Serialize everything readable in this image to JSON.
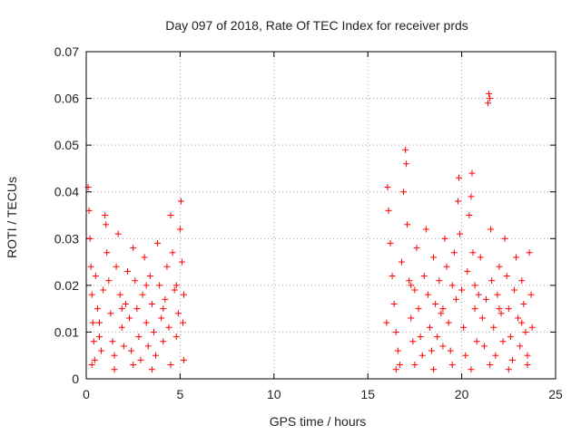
{
  "chart_data": {
    "type": "scatter",
    "title": "Day 097 of 2018, Rate Of TEC Index for receiver prds",
    "xlabel": "GPS time / hours",
    "ylabel": "ROTI / TECUs",
    "xlim": [
      0,
      25
    ],
    "ylim": [
      0,
      0.07
    ],
    "x_ticks": [
      "0",
      "5",
      "10",
      "15",
      "20",
      "25"
    ],
    "y_ticks": [
      "0",
      "0.01",
      "0.02",
      "0.03",
      "0.04",
      "0.05",
      "0.06",
      "0.07"
    ],
    "grid": true,
    "marker": "+",
    "color": "#ff0000",
    "series": [
      {
        "points": [
          [
            0.1,
            0.041
          ],
          [
            0.15,
            0.036
          ],
          [
            0.2,
            0.03
          ],
          [
            0.25,
            0.024
          ],
          [
            0.3,
            0.018
          ],
          [
            0.35,
            0.012
          ],
          [
            0.4,
            0.008
          ],
          [
            0.45,
            0.004
          ],
          [
            0.5,
            0.022
          ],
          [
            0.6,
            0.015
          ],
          [
            0.7,
            0.009
          ],
          [
            0.8,
            0.006
          ],
          [
            0.9,
            0.019
          ],
          [
            1.0,
            0.035
          ],
          [
            1.05,
            0.033
          ],
          [
            1.1,
            0.027
          ],
          [
            1.2,
            0.021
          ],
          [
            1.3,
            0.014
          ],
          [
            1.4,
            0.008
          ],
          [
            1.5,
            0.005
          ],
          [
            1.6,
            0.024
          ],
          [
            1.7,
            0.031
          ],
          [
            1.8,
            0.018
          ],
          [
            1.9,
            0.011
          ],
          [
            2.0,
            0.007
          ],
          [
            2.1,
            0.016
          ],
          [
            2.2,
            0.023
          ],
          [
            2.3,
            0.013
          ],
          [
            2.4,
            0.006
          ],
          [
            2.5,
            0.028
          ],
          [
            2.6,
            0.021
          ],
          [
            2.7,
            0.015
          ],
          [
            2.8,
            0.009
          ],
          [
            2.9,
            0.004
          ],
          [
            3.0,
            0.018
          ],
          [
            3.1,
            0.026
          ],
          [
            3.2,
            0.012
          ],
          [
            3.3,
            0.007
          ],
          [
            3.4,
            0.022
          ],
          [
            3.5,
            0.016
          ],
          [
            3.6,
            0.01
          ],
          [
            3.7,
            0.005
          ],
          [
            3.8,
            0.029
          ],
          [
            3.9,
            0.02
          ],
          [
            4.0,
            0.013
          ],
          [
            4.1,
            0.008
          ],
          [
            4.2,
            0.017
          ],
          [
            4.3,
            0.024
          ],
          [
            4.4,
            0.011
          ],
          [
            4.5,
            0.035
          ],
          [
            4.6,
            0.027
          ],
          [
            4.7,
            0.019
          ],
          [
            4.8,
            0.009
          ],
          [
            4.9,
            0.014
          ],
          [
            5.0,
            0.032
          ],
          [
            5.05,
            0.038
          ],
          [
            5.1,
            0.025
          ],
          [
            5.15,
            0.012
          ],
          [
            5.2,
            0.004
          ],
          [
            5.2,
            0.018
          ],
          [
            0.3,
            0.003
          ],
          [
            1.5,
            0.002
          ],
          [
            2.5,
            0.003
          ],
          [
            3.5,
            0.002
          ],
          [
            4.5,
            0.003
          ],
          [
            0.7,
            0.012
          ],
          [
            1.9,
            0.015
          ],
          [
            3.2,
            0.02
          ],
          [
            4.1,
            0.015
          ],
          [
            4.8,
            0.02
          ],
          [
            16.0,
            0.012
          ],
          [
            16.05,
            0.041
          ],
          [
            16.1,
            0.036
          ],
          [
            16.2,
            0.029
          ],
          [
            16.3,
            0.022
          ],
          [
            16.4,
            0.016
          ],
          [
            16.5,
            0.01
          ],
          [
            16.6,
            0.006
          ],
          [
            16.7,
            0.003
          ],
          [
            16.8,
            0.025
          ],
          [
            16.9,
            0.04
          ],
          [
            17.0,
            0.049
          ],
          [
            17.05,
            0.046
          ],
          [
            17.1,
            0.033
          ],
          [
            17.2,
            0.021
          ],
          [
            17.3,
            0.013
          ],
          [
            17.4,
            0.008
          ],
          [
            17.5,
            0.019
          ],
          [
            17.6,
            0.028
          ],
          [
            17.7,
            0.015
          ],
          [
            17.8,
            0.009
          ],
          [
            17.9,
            0.005
          ],
          [
            18.0,
            0.022
          ],
          [
            18.1,
            0.032
          ],
          [
            18.2,
            0.018
          ],
          [
            18.3,
            0.011
          ],
          [
            18.4,
            0.006
          ],
          [
            18.5,
            0.026
          ],
          [
            18.6,
            0.016
          ],
          [
            18.7,
            0.009
          ],
          [
            18.8,
            0.021
          ],
          [
            18.9,
            0.014
          ],
          [
            19.0,
            0.007
          ],
          [
            19.1,
            0.03
          ],
          [
            19.2,
            0.024
          ],
          [
            19.3,
            0.012
          ],
          [
            19.4,
            0.006
          ],
          [
            19.5,
            0.02
          ],
          [
            19.6,
            0.027
          ],
          [
            19.7,
            0.017
          ],
          [
            19.8,
            0.038
          ],
          [
            19.85,
            0.043
          ],
          [
            19.9,
            0.031
          ],
          [
            20.0,
            0.019
          ],
          [
            20.1,
            0.011
          ],
          [
            20.2,
            0.005
          ],
          [
            20.3,
            0.023
          ],
          [
            20.4,
            0.035
          ],
          [
            20.5,
            0.039
          ],
          [
            20.55,
            0.044
          ],
          [
            20.6,
            0.027
          ],
          [
            20.7,
            0.015
          ],
          [
            20.8,
            0.008
          ],
          [
            20.9,
            0.018
          ],
          [
            21.0,
            0.026
          ],
          [
            21.1,
            0.013
          ],
          [
            21.2,
            0.007
          ],
          [
            21.3,
            0.017
          ],
          [
            21.4,
            0.059
          ],
          [
            21.45,
            0.061
          ],
          [
            21.5,
            0.06
          ],
          [
            21.55,
            0.032
          ],
          [
            21.6,
            0.021
          ],
          [
            21.7,
            0.011
          ],
          [
            21.8,
            0.005
          ],
          [
            21.9,
            0.018
          ],
          [
            22.0,
            0.024
          ],
          [
            22.1,
            0.014
          ],
          [
            22.2,
            0.008
          ],
          [
            22.3,
            0.03
          ],
          [
            22.4,
            0.022
          ],
          [
            22.5,
            0.015
          ],
          [
            22.6,
            0.009
          ],
          [
            22.7,
            0.004
          ],
          [
            22.8,
            0.019
          ],
          [
            22.9,
            0.026
          ],
          [
            23.0,
            0.013
          ],
          [
            23.1,
            0.007
          ],
          [
            23.2,
            0.021
          ],
          [
            23.3,
            0.016
          ],
          [
            23.4,
            0.01
          ],
          [
            23.5,
            0.005
          ],
          [
            23.6,
            0.027
          ],
          [
            23.7,
            0.018
          ],
          [
            23.75,
            0.011
          ],
          [
            16.5,
            0.002
          ],
          [
            17.5,
            0.003
          ],
          [
            18.5,
            0.002
          ],
          [
            19.5,
            0.003
          ],
          [
            20.5,
            0.002
          ],
          [
            21.5,
            0.003
          ],
          [
            22.5,
            0.002
          ],
          [
            23.5,
            0.003
          ],
          [
            17.3,
            0.02
          ],
          [
            19.0,
            0.015
          ],
          [
            20.7,
            0.02
          ],
          [
            22.0,
            0.015
          ],
          [
            23.2,
            0.012
          ]
        ]
      }
    ]
  }
}
